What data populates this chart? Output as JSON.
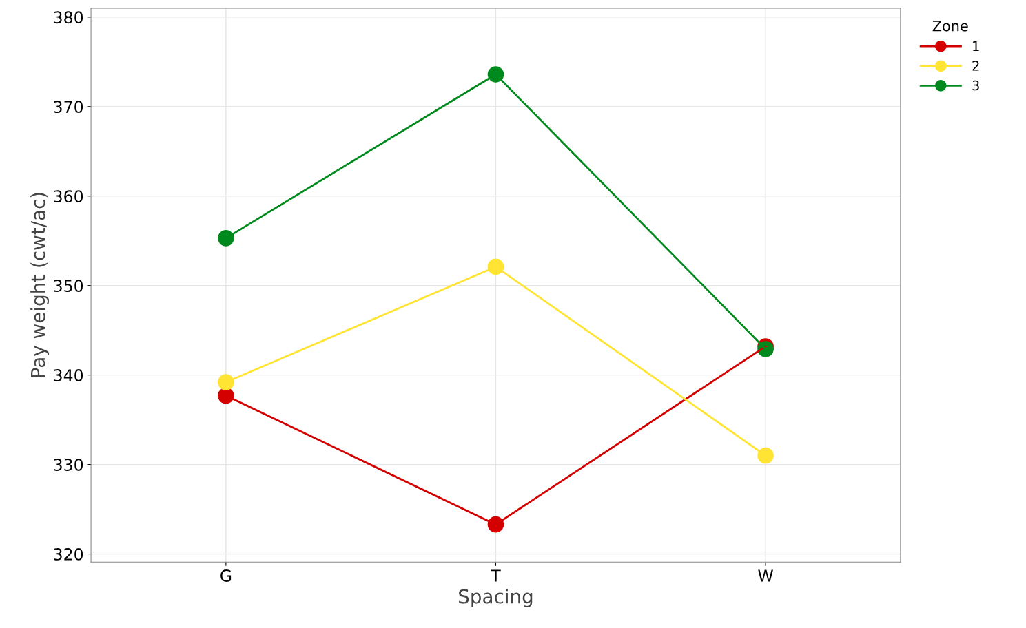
{
  "chart_data": {
    "type": "line",
    "xlabel": "Spacing",
    "ylabel": "Pay weight (cwt/ac)",
    "legend_title": "Zone",
    "categories": [
      "G",
      "T",
      "W"
    ],
    "series": [
      {
        "name": "1",
        "color": "#d40000",
        "values": [
          337.7,
          323.3,
          343.2
        ]
      },
      {
        "name": "2",
        "color": "#ffe433",
        "values": [
          339.2,
          352.1,
          331.0
        ]
      },
      {
        "name": "3",
        "color": "#008a1e",
        "values": [
          355.3,
          373.6,
          342.9
        ]
      }
    ],
    "ylim": [
      319.1,
      381.0
    ],
    "yticks": [
      320,
      330,
      340,
      350,
      360,
      370,
      380
    ],
    "grid": true,
    "legend": "top right",
    "marker": "circle",
    "line_style": "solid"
  }
}
